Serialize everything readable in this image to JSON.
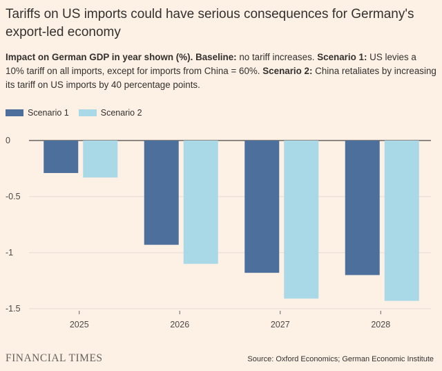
{
  "title": "Tariffs on US imports could have serious consequences for Germany's export-led economy",
  "subtitle": {
    "part1_bold": "Impact on German GDP in year shown (%). Baseline:",
    "part2": " no tariff increases. ",
    "part3_bold": "Scenario 1:",
    "part4": " US levies a 10% tariff on all imports, except for imports from China = 60%. ",
    "part5_bold": "Scenario 2:",
    "part6": " China retaliates by increasing its tariff on US imports by 40 percentage points."
  },
  "colors": {
    "background": "#fdf1e6",
    "scenario1": "#4c6f9b",
    "scenario2": "#a9d8e6",
    "zero_line": "#4d4845",
    "grid": "#e7dbd1"
  },
  "chart_data": {
    "type": "bar",
    "categories": [
      "2025",
      "2026",
      "2027",
      "2028"
    ],
    "series": [
      {
        "name": "Scenario 1",
        "values": [
          -0.29,
          -0.93,
          -1.18,
          -1.2
        ]
      },
      {
        "name": "Scenario 2",
        "values": [
          -0.33,
          -1.1,
          -1.41,
          -1.43
        ]
      }
    ],
    "yticks": [
      0,
      -0.5,
      -1,
      -1.5
    ],
    "ytick_labels": [
      "0",
      "-0.5",
      "-1",
      "-1.5"
    ],
    "ylim": [
      -1.5,
      0
    ],
    "title": "Tariffs on US imports could have serious consequences for Germany's export-led economy",
    "ylabel": "",
    "xlabel": "",
    "legend": "top-left"
  },
  "footer": {
    "brand": "FINANCIAL TIMES",
    "source": "Source: Oxford Economics; German Economic Institute"
  }
}
